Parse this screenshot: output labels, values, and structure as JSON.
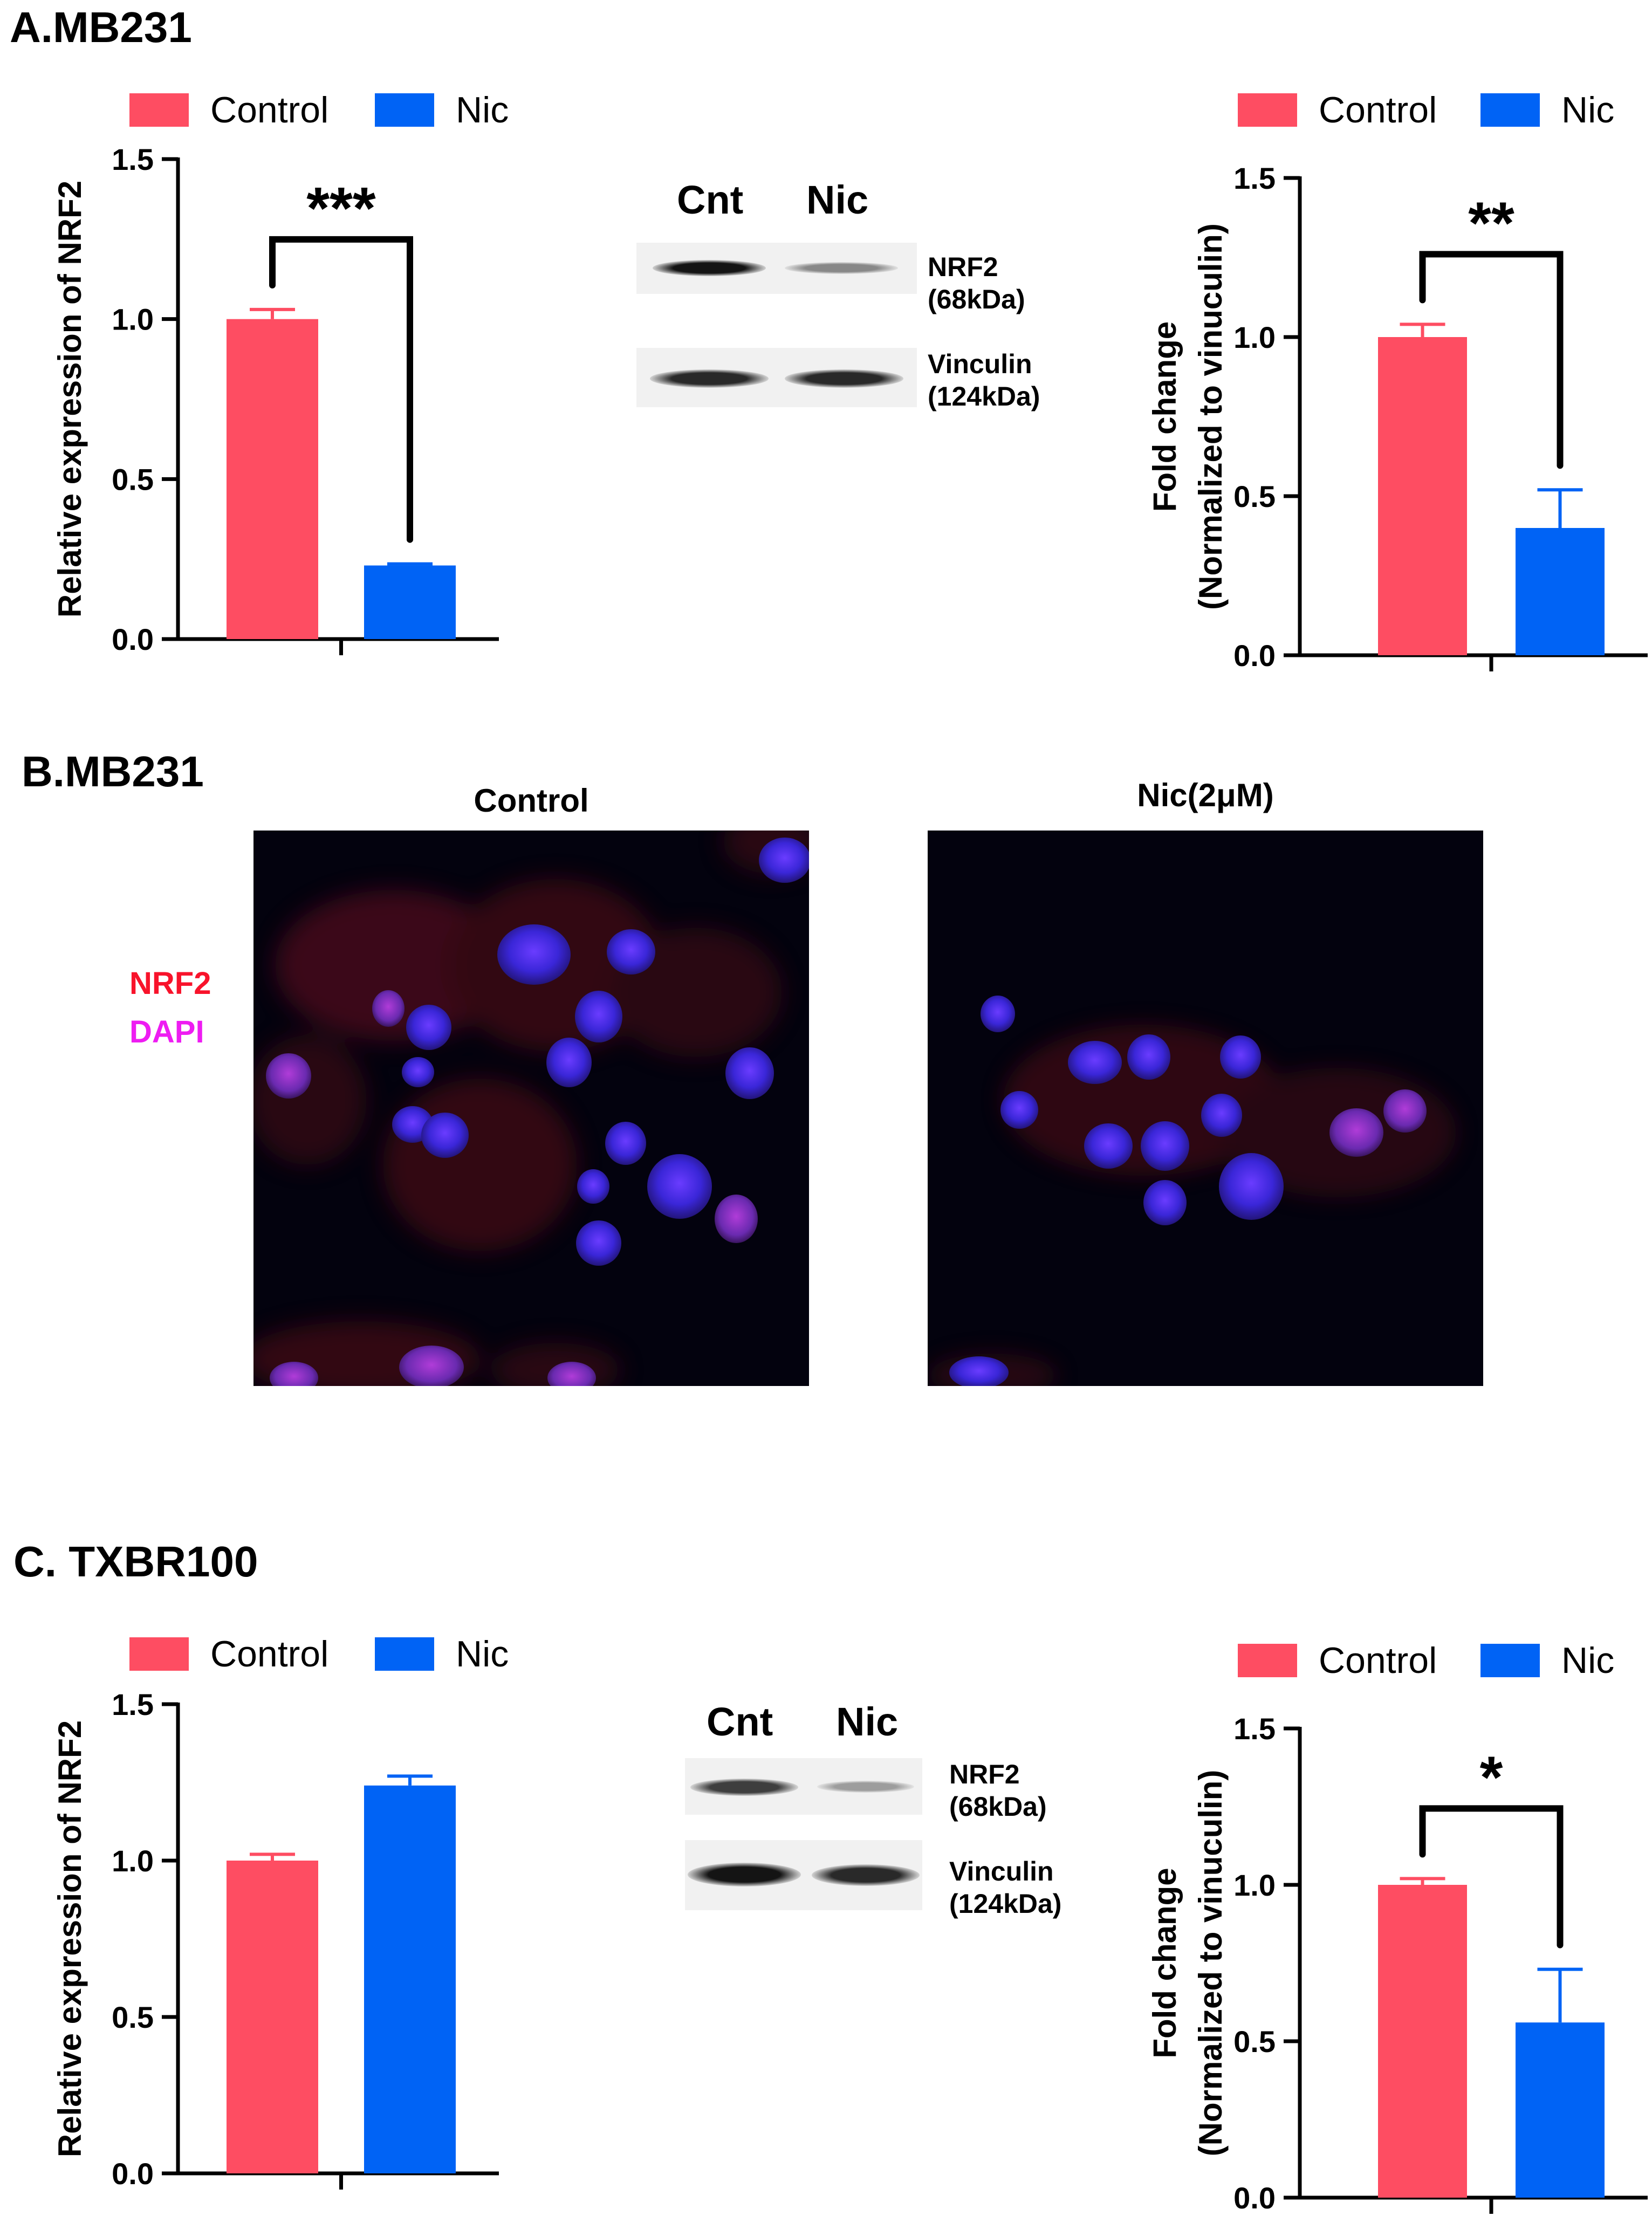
{
  "colors": {
    "control": "#fe4d62",
    "nic": "#0063f5"
  },
  "panel_a": {
    "title": "A.MB231",
    "blot": {
      "lanes": [
        "Cnt",
        "Nic"
      ],
      "bands": [
        {
          "label": "NRF2\n(68kDa)",
          "intensities": [
            1.0,
            0.45
          ]
        },
        {
          "label": "Vinculin\n(124kDa)",
          "intensities": [
            0.9,
            0.9
          ]
        }
      ]
    }
  },
  "panel_b": {
    "title": "B.MB231",
    "stain_nrf2": "NRF2",
    "stain_dapi": "DAPI",
    "image_control_title": "Control",
    "image_nic_title": "Nic(2μM)"
  },
  "panel_c": {
    "title": "C. TXBR100",
    "blot": {
      "lanes": [
        "Cnt",
        "Nic"
      ],
      "bands": [
        {
          "label": "NRF2\n(68kDa)",
          "intensities": [
            0.8,
            0.35
          ]
        },
        {
          "label": "Vinculin\n(124kDa)",
          "intensities": [
            1.0,
            0.9
          ]
        }
      ]
    }
  },
  "chart_data": [
    {
      "id": "A-left",
      "type": "bar",
      "ylabel": "Relative expression of NRF2",
      "ylim": [
        0,
        1.5
      ],
      "yticks": [
        "0.0",
        "0.5",
        "1.0",
        "1.5"
      ],
      "legend": [
        "Control",
        "Nic"
      ],
      "series": [
        {
          "name": "Control",
          "value": 1.0,
          "error": 0.03
        },
        {
          "name": "Nic",
          "value": 0.23,
          "error": 0.005
        }
      ],
      "significance": "***"
    },
    {
      "id": "A-right",
      "type": "bar",
      "ylabel": "Fold change",
      "ylabel2": "(Normalized to vinuculin)",
      "ylim": [
        0,
        1.5
      ],
      "yticks": [
        "0.0",
        "0.5",
        "1.0",
        "1.5"
      ],
      "legend": [
        "Control",
        "Nic"
      ],
      "series": [
        {
          "name": "Control",
          "value": 1.0,
          "error": 0.04
        },
        {
          "name": "Nic",
          "value": 0.4,
          "error": 0.12
        }
      ],
      "significance": "**"
    },
    {
      "id": "C-left",
      "type": "bar",
      "ylabel": "Relative expression of NRF2",
      "ylim": [
        0,
        1.5
      ],
      "yticks": [
        "0.0",
        "0.5",
        "1.0",
        "1.5"
      ],
      "legend": [
        "Control",
        "Nic"
      ],
      "series": [
        {
          "name": "Control",
          "value": 1.0,
          "error": 0.02
        },
        {
          "name": "Nic",
          "value": 1.24,
          "error": 0.03
        }
      ],
      "significance": ""
    },
    {
      "id": "C-right",
      "type": "bar",
      "ylabel": "Fold change",
      "ylabel2": "(Normalized to vinuculin)",
      "ylim": [
        0,
        1.5
      ],
      "yticks": [
        "0.0",
        "0.5",
        "1.0",
        "1.5"
      ],
      "legend": [
        "Control",
        "Nic"
      ],
      "series": [
        {
          "name": "Control",
          "value": 1.0,
          "error": 0.02
        },
        {
          "name": "Nic",
          "value": 0.56,
          "error": 0.17
        }
      ],
      "significance": "*"
    }
  ]
}
